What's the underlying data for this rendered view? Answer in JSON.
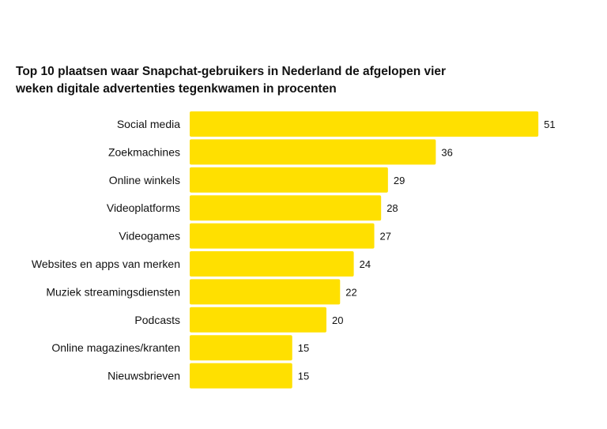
{
  "chart_data": {
    "type": "bar",
    "orientation": "horizontal",
    "title_lines": [
      "Top 10 plaatsen waar Snapchat-gebruikers in Nederland de afgelopen vier",
      "weken digitale advertenties tegenkwamen in procenten"
    ],
    "categories": [
      "Social media",
      "Zoekmachines",
      "Online winkels",
      "Videoplatforms",
      "Videogames",
      "Websites en apps van merken",
      "Muziek streamingsdiensten",
      "Podcasts",
      "Online magazines/kranten",
      "Nieuwsbrieven"
    ],
    "values": [
      51,
      36,
      29,
      28,
      27,
      24,
      22,
      20,
      15,
      15
    ],
    "bar_color": "#FFE000",
    "data_labels": true,
    "grid": false,
    "legend": "none"
  }
}
